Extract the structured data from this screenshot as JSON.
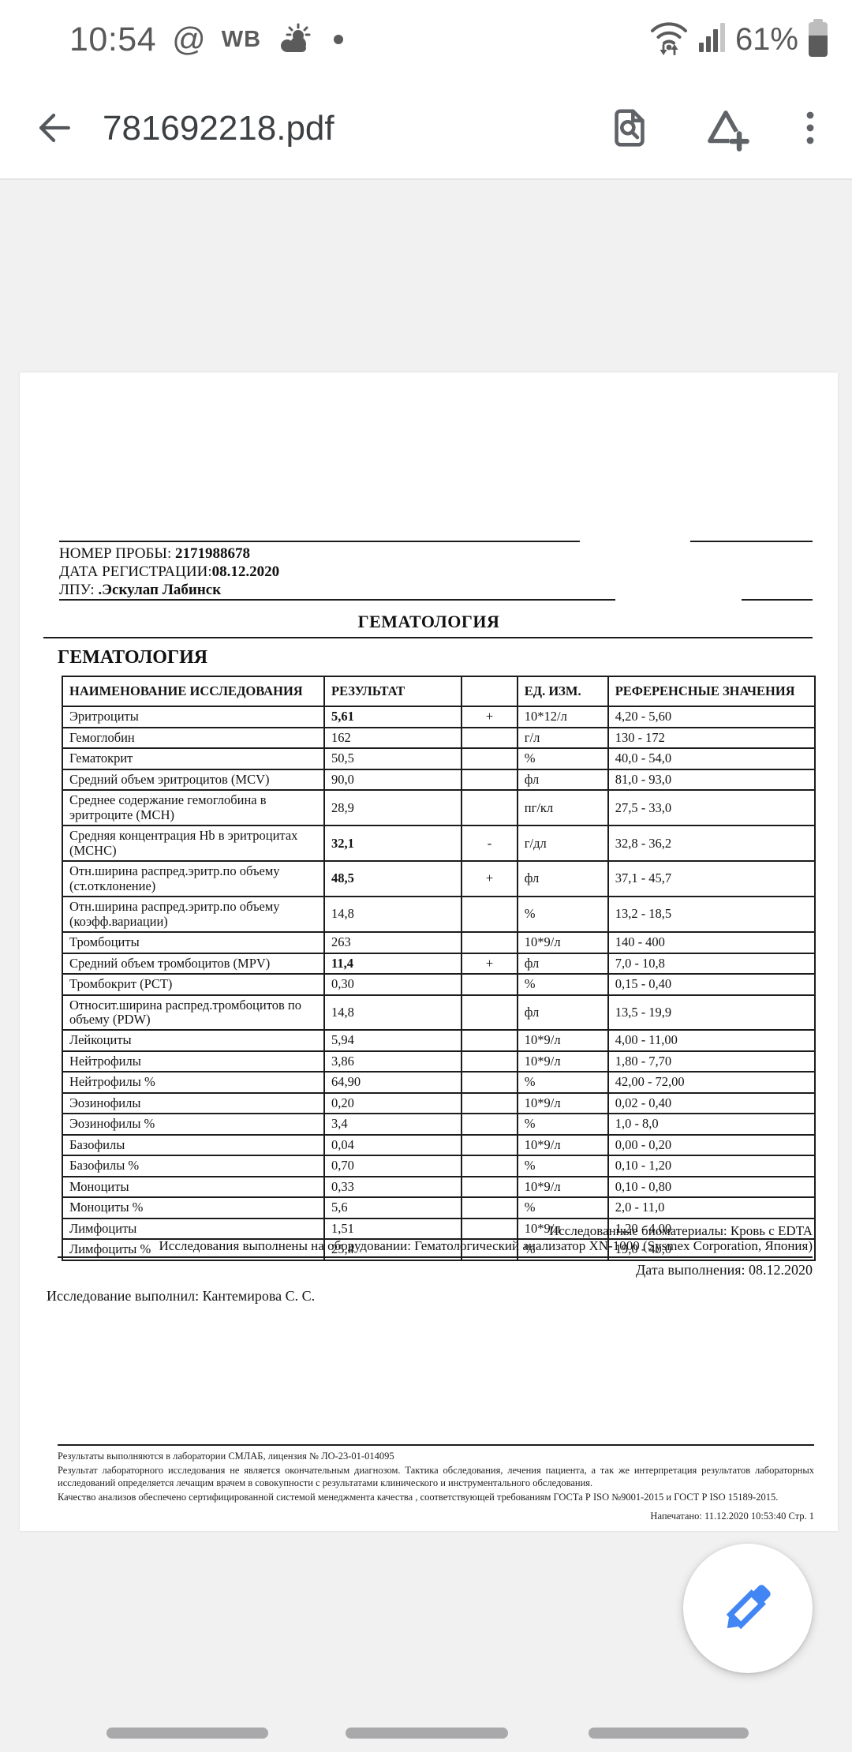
{
  "status_bar": {
    "time": "10:54",
    "at_icon": "@",
    "carrier_badge": "WB",
    "battery": "61%"
  },
  "app_bar": {
    "title": "781692218.pdf"
  },
  "colors": {
    "accent_blue": "#4285f4",
    "icon_gray": "#5f6368",
    "background_gray": "#f1f1f2"
  },
  "document": {
    "header": {
      "sample_number_label": "НОМЕР ПРОБЫ:",
      "sample_number": "2171988678",
      "registration_date_label": "ДАТА РЕГИСТРАЦИИ:",
      "registration_date": "08.12.2020",
      "facility_label": "ЛПУ:",
      "facility": ".Эскулап Лабинск"
    },
    "section_title": "ГЕМАТОЛОГИЯ",
    "subsection_title": "ГЕМАТОЛОГИЯ",
    "table": {
      "headers": [
        "НАИМЕНОВАНИЕ ИССЛЕДОВАНИЯ",
        "РЕЗУЛЬТАТ",
        "",
        "ЕД. ИЗМ.",
        "РЕФЕРЕНСНЫЕ ЗНАЧЕНИЯ"
      ],
      "rows": [
        {
          "name": "Эритроциты",
          "result": "5,61",
          "bold": true,
          "flag": "+",
          "units": "10*12/л",
          "reference": "4,20 - 5,60"
        },
        {
          "name": "Гемоглобин",
          "result": "162",
          "bold": false,
          "flag": "",
          "units": "г/л",
          "reference": "130 - 172"
        },
        {
          "name": "Гематокрит",
          "result": "50,5",
          "bold": false,
          "flag": "",
          "units": "%",
          "reference": "40,0 - 54,0"
        },
        {
          "name": "Средний объем эритроцитов (MCV)",
          "result": "90,0",
          "bold": false,
          "flag": "",
          "units": "фл",
          "reference": "81,0 - 93,0"
        },
        {
          "name": "Среднее содержание гемоглобина в эритроците (MCH)",
          "result": "28,9",
          "bold": false,
          "flag": "",
          "units": "пг/кл",
          "reference": "27,5 - 33,0"
        },
        {
          "name": "Средняя концентрация Hb в эритроцитах (MCHC)",
          "result": "32,1",
          "bold": true,
          "flag": "-",
          "units": "г/дл",
          "reference": "32,8 - 36,2"
        },
        {
          "name": "Отн.ширина распред.эритр.по объему (ст.отклонение)",
          "result": "48,5",
          "bold": true,
          "flag": "+",
          "units": "фл",
          "reference": "37,1 - 45,7"
        },
        {
          "name": "Отн.ширина распред.эритр.по объему (коэфф.вариации)",
          "result": "14,8",
          "bold": false,
          "flag": "",
          "units": "%",
          "reference": "13,2 - 18,5"
        },
        {
          "name": "Тромбоциты",
          "result": "263",
          "bold": false,
          "flag": "",
          "units": "10*9/л",
          "reference": "140 - 400"
        },
        {
          "name": "Средний объем тромбоцитов (MPV)",
          "result": "11,4",
          "bold": true,
          "flag": "+",
          "units": "фл",
          "reference": "7,0 - 10,8"
        },
        {
          "name": "Тромбокрит (PCT)",
          "result": "0,30",
          "bold": false,
          "flag": "",
          "units": "%",
          "reference": "0,15 - 0,40"
        },
        {
          "name": "Относит.ширина распред.тромбоцитов по объему (PDW)",
          "result": "14,8",
          "bold": false,
          "flag": "",
          "units": "фл",
          "reference": "13,5 - 19,9"
        },
        {
          "name": "Лейкоциты",
          "result": "5,94",
          "bold": false,
          "flag": "",
          "units": "10*9/л",
          "reference": "4,00 - 11,00"
        },
        {
          "name": "Нейтрофилы",
          "result": "3,86",
          "bold": false,
          "flag": "",
          "units": "10*9/л",
          "reference": "1,80 - 7,70"
        },
        {
          "name": "Нейтрофилы %",
          "result": "64,90",
          "bold": false,
          "flag": "",
          "units": "%",
          "reference": "42,00 - 72,00"
        },
        {
          "name": "Эозинофилы",
          "result": "0,20",
          "bold": false,
          "flag": "",
          "units": "10*9/л",
          "reference": "0,02 - 0,40"
        },
        {
          "name": "Эозинофилы %",
          "result": "3,4",
          "bold": false,
          "flag": "",
          "units": "%",
          "reference": "1,0 - 8,0"
        },
        {
          "name": "Базофилы",
          "result": "0,04",
          "bold": false,
          "flag": "",
          "units": "10*9/л",
          "reference": "0,00 - 0,20"
        },
        {
          "name": "Базофилы %",
          "result": "0,70",
          "bold": false,
          "flag": "",
          "units": "%",
          "reference": "0,10 - 1,20"
        },
        {
          "name": "Моноциты",
          "result": "0,33",
          "bold": false,
          "flag": "",
          "units": "10*9/л",
          "reference": "0,10 - 0,80"
        },
        {
          "name": "Моноциты %",
          "result": "5,6",
          "bold": false,
          "flag": "",
          "units": "%",
          "reference": "2,0 - 11,0"
        },
        {
          "name": "Лимфоциты",
          "result": "1,51",
          "bold": false,
          "flag": "",
          "units": "10*9/л",
          "reference": "1,20 - 4,00"
        },
        {
          "name": "Лимфоциты %",
          "result": "25,4",
          "bold": false,
          "flag": "",
          "units": "%",
          "reference": "19,0 - 40,0"
        }
      ]
    },
    "notes": {
      "biomaterials": "Исследованные биоматериалы: Кровь с EDTA",
      "equipment": "Исследования выполнены на оборудовании: Гематологический анализатор XN-1000 (Sysmex Corporation, Япония)",
      "execution_date": "Дата выполнения: 08.12.2020",
      "performed_by": "Исследование выполнил: Кантемирова С. С."
    },
    "footer": {
      "license": "Результаты выполняются в лаборатории СМЛАБ, лицензия № ЛО-23-01-014095",
      "disclaimer": "Результат лабораторного исследования не является окончательным диагнозом. Тактика обследования, лечения пациента, а так же интерпретация результатов лабораторных исследований определяется лечащим врачем в совокупности с результатами  клинического и инструментального обследования.",
      "quality": "Качество анализов обеспечено сертифицированной системой менеджмента качества , соответствующей требованиям ГОСТа Р ISO №9001-2015  и ГОСТ Р ISO 15189-2015.",
      "printed": "Напечатано: 11.12.2020 10:53:40    Стр. 1"
    }
  }
}
